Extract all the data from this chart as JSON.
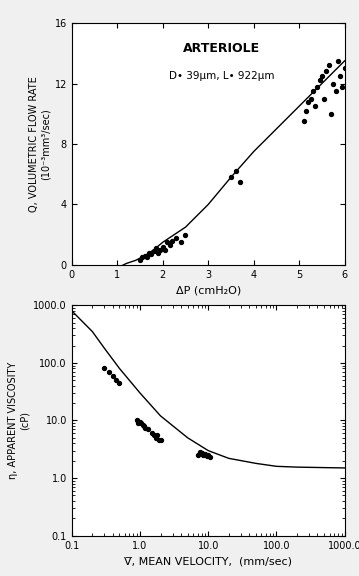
{
  "title1": "ARTERIOLE",
  "subtitle1": "D• 39μm, L• 922μm",
  "xlabel1": "ΔP (cmH₂O)",
  "ylabel1": "Q, VOLUMETRIC FLOW RATE\n(10⁻³mm³/sec)",
  "xlim1": [
    0,
    6
  ],
  "ylim1": [
    0,
    16
  ],
  "xticks1": [
    0,
    1,
    2,
    3,
    4,
    5,
    6
  ],
  "yticks1": [
    0,
    4,
    8,
    12,
    16
  ],
  "scatter1_x": [
    1.5,
    1.55,
    1.6,
    1.65,
    1.7,
    1.75,
    1.8,
    1.85,
    1.9,
    1.95,
    2.0,
    2.05,
    2.1,
    2.15,
    2.2,
    2.3,
    2.4,
    2.5,
    3.5,
    3.6,
    3.7,
    5.1,
    5.15,
    5.2,
    5.25,
    5.3,
    5.35,
    5.4,
    5.45,
    5.5,
    5.55,
    5.6,
    5.65,
    5.7,
    5.75,
    5.8,
    5.85,
    5.9,
    5.95,
    6.0
  ],
  "scatter1_y": [
    0.3,
    0.5,
    0.6,
    0.5,
    0.8,
    0.7,
    0.9,
    1.1,
    0.8,
    1.0,
    1.2,
    1.0,
    1.5,
    1.3,
    1.6,
    1.8,
    1.5,
    2.0,
    5.8,
    6.2,
    5.5,
    9.5,
    10.2,
    10.8,
    11.0,
    11.5,
    10.5,
    11.8,
    12.2,
    12.5,
    11.0,
    12.8,
    13.2,
    10.0,
    12.0,
    11.5,
    13.5,
    12.5,
    11.8,
    13.0
  ],
  "curve1_x": [
    0.8,
    1.0,
    1.2,
    1.4,
    1.6,
    1.8,
    2.0,
    2.5,
    3.0,
    3.5,
    4.0,
    4.5,
    5.0,
    5.5,
    6.0
  ],
  "curve1_y": [
    -0.5,
    -0.2,
    0.1,
    0.3,
    0.6,
    1.0,
    1.5,
    2.5,
    4.0,
    5.8,
    7.5,
    9.0,
    10.5,
    12.0,
    13.5
  ],
  "xlabel2": "V̅, MEAN VELOCITY,  (mm/sec)",
  "ylabel2": "η, APPARENT VISCOSITY\n(cP)",
  "xlim2_log": [
    0.1,
    1000
  ],
  "ylim2_log": [
    0.1,
    1000
  ],
  "scatter2_x": [
    0.3,
    0.35,
    0.4,
    0.45,
    0.5,
    0.9,
    0.95,
    1.0,
    1.05,
    1.1,
    1.15,
    1.2,
    1.3,
    1.5,
    1.6,
    1.7,
    1.8,
    1.9,
    2.0,
    7.0,
    7.5,
    8.0,
    8.5,
    9.0,
    9.5,
    10.0,
    10.5
  ],
  "scatter2_y": [
    80,
    70,
    60,
    50,
    45,
    10.0,
    9.0,
    9.5,
    9.0,
    8.5,
    8.0,
    7.5,
    7.0,
    6.0,
    5.5,
    5.0,
    5.5,
    4.5,
    4.5,
    2.5,
    2.8,
    2.7,
    2.5,
    2.6,
    2.4,
    2.5,
    2.3
  ],
  "curve2_x": [
    0.1,
    0.2,
    0.3,
    0.5,
    1.0,
    2.0,
    5.0,
    10.0,
    20.0,
    50.0,
    100.0,
    200.0,
    500.0,
    1000.0
  ],
  "curve2_y": [
    800,
    350,
    180,
    80,
    30,
    12,
    5.0,
    3.0,
    2.2,
    1.8,
    1.6,
    1.55,
    1.52,
    1.5
  ],
  "bg_color": "#f0f0f0",
  "plot_bg": "#ffffff",
  "dot_color": "#000000",
  "line_color": "#000000"
}
